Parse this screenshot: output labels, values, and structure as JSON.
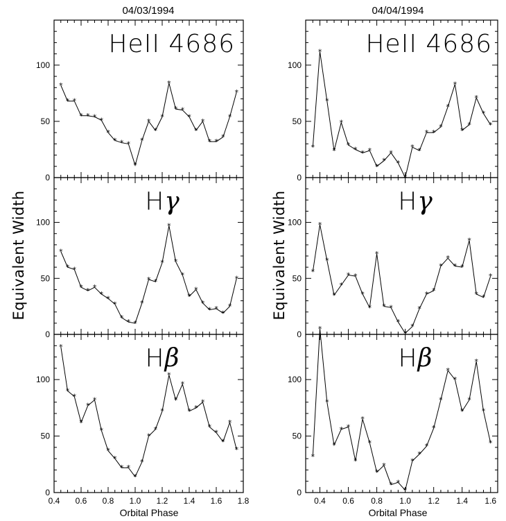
{
  "figure": {
    "ylabel": "Equivalent Width",
    "xlabel": "Orbital Phase"
  },
  "chart_data": [
    {
      "type": "line",
      "title": "04/03/1994",
      "panel_label": "HeII 4686",
      "xlim": [
        0.4,
        1.8
      ],
      "ylim": [
        0,
        140
      ],
      "xticks": [
        "0.4",
        "0.6",
        "0.8",
        "1.0",
        "1.2",
        "1.4",
        "1.6",
        "1.8"
      ],
      "yticks": [
        "0",
        "50",
        "100"
      ],
      "x": [
        0.45,
        0.5,
        0.55,
        0.6,
        0.65,
        0.7,
        0.75,
        0.8,
        0.85,
        0.9,
        0.95,
        1.0,
        1.05,
        1.1,
        1.15,
        1.2,
        1.25,
        1.3,
        1.35,
        1.4,
        1.45,
        1.5,
        1.55,
        1.6,
        1.65,
        1.7,
        1.75
      ],
      "y": [
        82,
        68,
        68,
        55,
        55,
        54,
        51,
        40,
        33,
        31,
        30,
        11,
        33,
        50,
        42,
        54,
        84,
        61,
        60,
        54,
        42,
        50,
        32,
        32,
        36,
        54,
        76
      ]
    },
    {
      "type": "line",
      "title": "04/04/1994",
      "panel_label": "HeII 4686",
      "xlim": [
        0.3,
        1.65
      ],
      "ylim": [
        0,
        140
      ],
      "xticks": [
        "0.4",
        "0.6",
        "0.8",
        "1.0",
        "1.2",
        "1.4",
        "1.6"
      ],
      "yticks": [
        "0",
        "50",
        "100"
      ],
      "x": [
        0.35,
        0.4,
        0.45,
        0.5,
        0.55,
        0.6,
        0.65,
        0.7,
        0.75,
        0.8,
        0.85,
        0.9,
        0.95,
        1.0,
        1.05,
        1.1,
        1.15,
        1.2,
        1.25,
        1.3,
        1.35,
        1.4,
        1.45,
        1.5,
        1.55,
        1.6
      ],
      "y": [
        27,
        112,
        68,
        24,
        49,
        29,
        25,
        22,
        24,
        10,
        15,
        22,
        13,
        0,
        27,
        24,
        40,
        40,
        45,
        63,
        83,
        42,
        47,
        71,
        57,
        47
      ]
    },
    {
      "type": "line",
      "panel_label": "Hγ",
      "xlim": [
        0.4,
        1.8
      ],
      "ylim": [
        0,
        140
      ],
      "xticks": [
        "0.4",
        "0.6",
        "0.8",
        "1.0",
        "1.2",
        "1.4",
        "1.6",
        "1.8"
      ],
      "yticks": [
        "0",
        "50",
        "100"
      ],
      "x": [
        0.45,
        0.5,
        0.55,
        0.6,
        0.65,
        0.7,
        0.75,
        0.8,
        0.85,
        0.9,
        0.95,
        1.0,
        1.05,
        1.1,
        1.15,
        1.2,
        1.25,
        1.3,
        1.35,
        1.4,
        1.45,
        1.5,
        1.55,
        1.6,
        1.65,
        1.7,
        1.75
      ],
      "y": [
        74,
        60,
        58,
        42,
        39,
        42,
        36,
        32,
        27,
        15,
        11,
        10,
        28,
        49,
        47,
        64,
        97,
        65,
        53,
        34,
        40,
        28,
        22,
        23,
        19,
        25,
        50
      ]
    },
    {
      "type": "line",
      "panel_label": "Hγ",
      "xlim": [
        0.3,
        1.65
      ],
      "ylim": [
        0,
        140
      ],
      "xticks": [
        "0.4",
        "0.6",
        "0.8",
        "1.0",
        "1.2",
        "1.4",
        "1.6"
      ],
      "yticks": [
        "0",
        "50",
        "100"
      ],
      "x": [
        0.35,
        0.4,
        0.45,
        0.5,
        0.55,
        0.6,
        0.65,
        0.7,
        0.75,
        0.8,
        0.85,
        0.9,
        0.95,
        1.0,
        1.05,
        1.1,
        1.15,
        1.2,
        1.25,
        1.3,
        1.35,
        1.4,
        1.45,
        1.5,
        1.55,
        1.6
      ],
      "y": [
        56,
        98,
        66,
        35,
        44,
        53,
        52,
        36,
        24,
        72,
        25,
        24,
        11,
        1,
        7,
        23,
        36,
        39,
        61,
        68,
        61,
        60,
        84,
        36,
        33,
        52
      ]
    },
    {
      "type": "line",
      "panel_label": "Hβ",
      "xlim": [
        0.4,
        1.8
      ],
      "ylim": [
        0,
        140
      ],
      "xticks": [
        "0.4",
        "0.6",
        "0.8",
        "1.0",
        "1.2",
        "1.4",
        "1.6",
        "1.8"
      ],
      "yticks": [
        "0",
        "50",
        "100"
      ],
      "x": [
        0.45,
        0.5,
        0.55,
        0.6,
        0.65,
        0.7,
        0.75,
        0.8,
        0.85,
        0.9,
        0.95,
        1.0,
        1.05,
        1.1,
        1.15,
        1.2,
        1.25,
        1.3,
        1.35,
        1.4,
        1.45,
        1.5,
        1.55,
        1.6,
        1.65,
        1.7,
        1.75
      ],
      "y": [
        129,
        90,
        85,
        62,
        77,
        82,
        55,
        37,
        30,
        22,
        22,
        14,
        27,
        50,
        56,
        72,
        104,
        82,
        96,
        72,
        75,
        80,
        58,
        53,
        45,
        62,
        38
      ]
    },
    {
      "type": "line",
      "panel_label": "Hβ",
      "xlim": [
        0.3,
        1.65
      ],
      "ylim": [
        0,
        140
      ],
      "xticks": [
        "0.4",
        "0.6",
        "0.8",
        "1.0",
        "1.2",
        "1.4",
        "1.6"
      ],
      "yticks": [
        "0",
        "50",
        "100"
      ],
      "x": [
        0.35,
        0.4,
        0.45,
        0.5,
        0.55,
        0.6,
        0.65,
        0.7,
        0.75,
        0.8,
        0.85,
        0.9,
        0.95,
        1.0,
        1.05,
        1.1,
        1.15,
        1.2,
        1.25,
        1.3,
        1.35,
        1.4,
        1.45,
        1.5,
        1.55,
        1.6
      ],
      "y": [
        32,
        145,
        80,
        42,
        56,
        58,
        28,
        65,
        44,
        18,
        24,
        7,
        9,
        2,
        28,
        34,
        41,
        57,
        82,
        108,
        100,
        72,
        82,
        116,
        72,
        44
      ]
    }
  ]
}
